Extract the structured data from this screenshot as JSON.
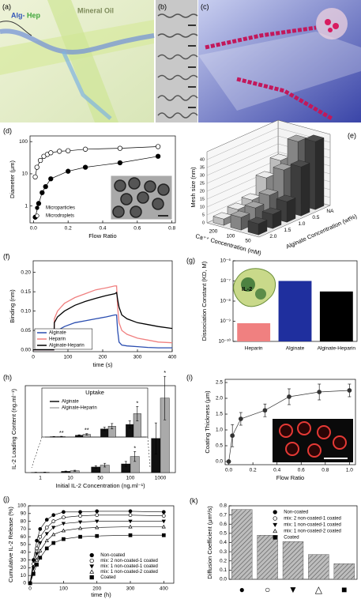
{
  "image_panels": [
    {
      "label": "(a)",
      "texts": [
        "Alg-",
        "Hep",
        "Mineral Oil"
      ]
    },
    {
      "label": "(b)"
    },
    {
      "label": "(c)"
    }
  ],
  "chart_data": [
    {
      "panel": "(d)",
      "type": "line",
      "xlabel": "Flow Ratio",
      "ylabel": "Diameter (μm)",
      "xlim": [
        -0.02,
        0.82
      ],
      "xticks": [
        {
          "value": 0,
          "label": "0.0"
        },
        {
          "value": 0.2,
          "label": "0.2"
        },
        {
          "value": 0.4,
          "label": "0.4"
        },
        {
          "value": 0.6,
          "label": "0.6"
        },
        {
          "value": 0.8,
          "label": "0.8"
        }
      ],
      "ylim": [
        0.3,
        150
      ],
      "ylog": true,
      "yticks": [
        1,
        10,
        100
      ],
      "legend": "lower left",
      "series": [
        {
          "name": "Microparticles",
          "color": "#000000",
          "marker": "circle-filled",
          "x": [
            0.01,
            0.03,
            0.05,
            0.07,
            0.1,
            0.2,
            0.3,
            0.5,
            0.72
          ],
          "values": [
            0.45,
            1.2,
            2.6,
            4,
            7,
            12,
            16,
            22,
            35
          ]
        },
        {
          "name": "Microdroplets",
          "color": "#000000",
          "marker": "circle-open",
          "x": [
            0.01,
            0.02,
            0.04,
            0.06,
            0.08,
            0.1,
            0.15,
            0.2,
            0.3,
            0.5,
            0.72
          ],
          "values": [
            8,
            16,
            26,
            35,
            40,
            45,
            50,
            52,
            58,
            62,
            70
          ]
        }
      ]
    },
    {
      "panel": "(e)",
      "type": "bar3d",
      "zlabel": "Mesh size (nm)",
      "xlabel": "Ca⁺⁺ Concentration (mM)",
      "ylabel": "Alginate Concentration (wt%)",
      "categories": [
        "200",
        "100",
        "50"
      ],
      "colors": [
        "#bdbdbd",
        "#858585",
        "#3d3d3d"
      ],
      "zlim": [
        0,
        45
      ],
      "zticks": [
        0,
        5,
        10,
        15,
        20,
        25,
        30,
        35,
        40
      ],
      "series": [
        {
          "name": "2.0",
          "values": [
            4,
            8,
            7
          ]
        },
        {
          "name": "1.5",
          "values": [
            6,
            10,
            9
          ]
        },
        {
          "name": "1.0",
          "values": [
            8,
            14,
            13
          ]
        },
        {
          "name": "0.5",
          "values": [
            18,
            26,
            31
          ]
        },
        {
          "name": "NA",
          "values": [
            25,
            40,
            43
          ]
        }
      ]
    },
    {
      "panel": "(f)",
      "type": "line",
      "xlabel": "time (s)",
      "ylabel": "Binding (nm)",
      "xlim": [
        0,
        400
      ],
      "xticks": [
        0,
        100,
        200,
        300,
        400
      ],
      "ylim": [
        -0.005,
        0.23
      ],
      "yticks": [
        {
          "value": 0,
          "label": "0.00"
        },
        {
          "value": 0.05,
          "label": "0.05"
        },
        {
          "value": 0.1,
          "label": "0.10"
        },
        {
          "value": 0.15,
          "label": "0.15"
        },
        {
          "value": 0.2,
          "label": "0.20"
        }
      ],
      "legend": "lower left",
      "x": [
        0,
        50,
        59,
        61,
        70,
        90,
        120,
        150,
        180,
        210,
        235,
        240,
        243,
        247,
        255,
        270,
        300,
        330,
        360,
        400
      ],
      "series": [
        {
          "name": "Alginate",
          "color": "#2a4db0",
          "values": [
            0,
            0,
            0,
            0.04,
            0.05,
            0.06,
            0.07,
            0.075,
            0.08,
            0.085,
            0.09,
            0.09,
            0.05,
            0.02,
            0.012,
            0.01,
            0.008,
            0.006,
            0.005,
            0.005
          ]
        },
        {
          "name": "Heparin",
          "color": "#f08080",
          "values": [
            0,
            0,
            0,
            0.08,
            0.1,
            0.12,
            0.135,
            0.145,
            0.155,
            0.16,
            0.165,
            0.165,
            0.11,
            0.07,
            0.05,
            0.04,
            0.03,
            0.025,
            0.02,
            0.018
          ]
        },
        {
          "name": "Alginate-Heparin",
          "color": "#000000",
          "values": [
            0,
            0,
            0,
            0.07,
            0.085,
            0.1,
            0.115,
            0.125,
            0.133,
            0.14,
            0.145,
            0.148,
            0.13,
            0.11,
            0.09,
            0.08,
            0.07,
            0.065,
            0.06,
            0.055
          ]
        }
      ]
    },
    {
      "panel": "(g)",
      "type": "bar",
      "ylabel": "Dissociation Constant (KD, M)",
      "inset_text": "IL-2",
      "categories": [
        "Heparin",
        "Alginate",
        "Alginate-Heparin"
      ],
      "values": [
        8e-10,
        1e-07,
        3e-08
      ],
      "colors": [
        "#f08080",
        "#1f2f9e",
        "#000000"
      ],
      "ylim": [
        1e-10,
        1e-06
      ],
      "ylog": true,
      "yticks": [
        {
          "value": 1e-10,
          "label": "10⁻¹⁰"
        },
        {
          "value": 1e-09,
          "label": "10⁻⁹"
        },
        {
          "value": 1e-08,
          "label": "10⁻⁸"
        },
        {
          "value": 1e-07,
          "label": "10⁻⁷"
        },
        {
          "value": 1e-06,
          "label": "10⁻⁶"
        }
      ]
    },
    {
      "panel": "(h)",
      "type": "grouped-bar",
      "xlabel": "Initial IL-2 Concentration (ng.ml⁻¹)",
      "ylabel": "IL-2 Loading Content (ng.ml⁻¹)",
      "categories": [
        "1",
        "10",
        "50",
        "100",
        "1000"
      ],
      "ylim": [
        0,
        140
      ],
      "series": [
        {
          "name": "Alginate",
          "color": "#111111",
          "values": [
            0.4,
            2,
            9,
            14,
            55
          ],
          "errors": [
            0.2,
            0.5,
            2,
            4,
            25
          ]
        },
        {
          "name": "Alginate-Heparin",
          "color": "#aaaaaa",
          "values": [
            0.5,
            3,
            12,
            26,
            120
          ],
          "errors": [
            0.3,
            0.8,
            3,
            8,
            35
          ]
        }
      ],
      "annotations": [
        null,
        null,
        null,
        "*",
        "*"
      ],
      "inset_title": "Uptake",
      "inset_ylim": [
        0,
        36
      ],
      "inset_annotations": [
        "**",
        "**",
        null,
        "*"
      ]
    },
    {
      "panel": "(i)",
      "type": "line",
      "xlabel": "Flow Ratio",
      "ylabel": "Coating Thickness (μm)",
      "xlim": [
        -0.03,
        1.05
      ],
      "xticks": [
        {
          "value": 0,
          "label": "0.0"
        },
        {
          "value": 0.2,
          "label": "0.2"
        },
        {
          "value": 0.4,
          "label": "0.4"
        },
        {
          "value": 0.6,
          "label": "0.6"
        },
        {
          "value": 0.8,
          "label": "0.8"
        },
        {
          "value": 1,
          "label": "1.0"
        }
      ],
      "ylim": [
        -0.1,
        2.6
      ],
      "yticks": [
        {
          "value": 0,
          "label": "0.0"
        },
        {
          "value": 0.5,
          "label": "0.5"
        },
        {
          "value": 1,
          "label": "1.0"
        },
        {
          "value": 1.5,
          "label": "1.5"
        },
        {
          "value": 2,
          "label": "2.0"
        },
        {
          "value": 2.5,
          "label": "2.5"
        }
      ],
      "x": [
        0,
        0.03,
        0.1,
        0.3,
        0.5,
        0.75,
        1.0
      ],
      "values": [
        0,
        0.82,
        1.35,
        1.62,
        2.05,
        2.2,
        2.25
      ],
      "errors": [
        0,
        0.35,
        0.2,
        0.2,
        0.25,
        0.25,
        0.2
      ],
      "color": "#333333"
    },
    {
      "panel": "(j)",
      "type": "line",
      "xlabel": "time (h)",
      "ylabel": "Cumulative IL-2 Release (%)",
      "xlim": [
        -5,
        430
      ],
      "xticks": [
        0,
        100,
        200,
        300,
        400
      ],
      "ylim": [
        0,
        100
      ],
      "yticks": [
        0,
        10,
        20,
        30,
        40,
        50,
        60,
        70,
        80,
        90,
        100
      ],
      "legend": "lower right",
      "x": [
        0,
        10,
        20,
        30,
        50,
        70,
        100,
        150,
        200,
        300,
        400
      ],
      "series": [
        {
          "name": "Non-coated",
          "color": "#000000",
          "marker": "circle-filled",
          "values": [
            0,
            30,
            55,
            70,
            82,
            88,
            92,
            92,
            93,
            93,
            92
          ]
        },
        {
          "name": "mix: 2 non-coated-1 coated",
          "color": "#000000",
          "marker": "circle-open",
          "values": [
            0,
            25,
            45,
            60,
            72,
            80,
            85,
            87,
            88,
            88,
            87
          ]
        },
        {
          "name": "mix: 1 non-coated-1 coated",
          "color": "#000000",
          "marker": "triangle-down-filled",
          "values": [
            0,
            20,
            38,
            52,
            64,
            72,
            77,
            79,
            80,
            80,
            80
          ]
        },
        {
          "name": "mix: 1 non-coated-2 coated",
          "color": "#000000",
          "marker": "triangle-up-open",
          "values": [
            0,
            16,
            30,
            42,
            55,
            63,
            68,
            71,
            72,
            73,
            73
          ]
        },
        {
          "name": "Coated",
          "color": "#000000",
          "marker": "square-filled",
          "values": [
            0,
            12,
            24,
            33,
            45,
            52,
            57,
            60,
            61,
            62,
            62
          ]
        }
      ]
    },
    {
      "panel": "(k)",
      "type": "bar",
      "ylabel": "Diffusion Coefficient (μm²/s)",
      "categories": [
        "●",
        "○",
        "▼",
        "△",
        "■"
      ],
      "values": [
        0.76,
        0.48,
        0.41,
        0.27,
        0.17
      ],
      "ylim": [
        0,
        0.8
      ],
      "yticks": [
        {
          "value": 0,
          "label": "0.0"
        },
        {
          "value": 0.1,
          "label": "0.1"
        },
        {
          "value": 0.2,
          "label": "0.2"
        },
        {
          "value": 0.3,
          "label": "0.3"
        },
        {
          "value": 0.4,
          "label": "0.4"
        },
        {
          "value": 0.5,
          "label": "0.5"
        },
        {
          "value": 0.6,
          "label": "0.6"
        },
        {
          "value": 0.7,
          "label": "0.7"
        },
        {
          "value": 0.8,
          "label": "0.8"
        }
      ],
      "legend": "upper right",
      "legend_labels": [
        "Non-coated",
        "mix: 2 non-coated-1 coated",
        "mix: 1 non-coated-1 coated",
        "mix: 1 non-coated-2 coated",
        "Coated"
      ],
      "legend_markers": [
        "circle-filled",
        "circle-open",
        "triangle-down-filled",
        "triangle-up-open",
        "square-filled"
      ]
    }
  ]
}
